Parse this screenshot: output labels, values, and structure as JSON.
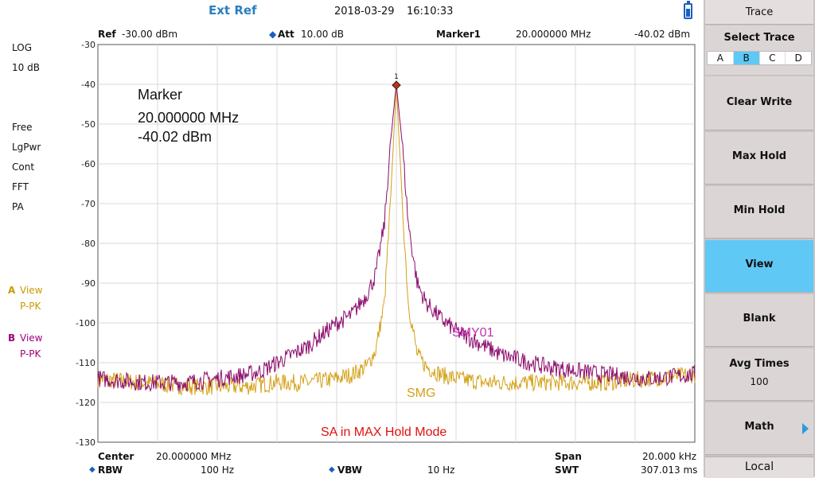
{
  "topbar": {
    "ref_source": "Ext Ref",
    "date": "2018-03-29",
    "time": "16:10:33",
    "battery_icon": "battery-icon"
  },
  "header": {
    "ref_label": "Ref",
    "ref_value": "-30.00 dBm",
    "att_label": "Att",
    "att_value": "10.00 dB",
    "marker_label": "Marker1",
    "marker_freq": "20.000000 MHz",
    "marker_level": "-40.02 dBm"
  },
  "left_info": {
    "scale": "LOG",
    "per_div": "10 dB",
    "trigger": "Free",
    "detector_mode": "LgPwr",
    "sweep": "Cont",
    "sweep_type": "FFT",
    "preamp": "PA",
    "traceA_letter": "A",
    "traceA_state": "View",
    "traceA_det": "P-PK",
    "traceB_letter": "B",
    "traceB_state": "View",
    "traceB_det": "P-PK"
  },
  "marker_box": {
    "title": "Marker",
    "freq": "20.000000 MHz",
    "level": "-40.02 dBm"
  },
  "bottom": {
    "center_label": "Center",
    "center_value": "20.000000 MHz",
    "span_label": "Span",
    "span_value": "20.000 kHz",
    "rbw_label": "RBW",
    "rbw_value": "100 Hz",
    "vbw_label": "VBW",
    "vbw_value": "10 Hz",
    "swt_label": "SWT",
    "swt_value": "307.013 ms"
  },
  "panel": {
    "title": "Trace",
    "select_label": "Select Trace",
    "traces": [
      "A",
      "B",
      "C",
      "D"
    ],
    "selected_trace": "B",
    "buttons": [
      {
        "label": "Clear Write"
      },
      {
        "label": "Max Hold"
      },
      {
        "label": "Min Hold"
      },
      {
        "label": "View",
        "active": true
      },
      {
        "label": "Blank"
      },
      {
        "label": "Avg Times",
        "sub": "100"
      },
      {
        "label": "Math",
        "has_arrow": true
      }
    ],
    "local": "Local"
  },
  "chart_data": {
    "type": "line",
    "xlabel": "",
    "ylabel": "",
    "ylim": [
      -130,
      -30
    ],
    "yticks": [
      -30,
      -40,
      -50,
      -60,
      -70,
      -80,
      -90,
      -100,
      -110,
      -120,
      -130
    ],
    "xlim": [
      19.99,
      20.01
    ],
    "x_units": "MHz",
    "grid": true,
    "annotations": [
      {
        "text": "SMY01",
        "color": "#c030b0"
      },
      {
        "text": "SMG",
        "color": "#d4a017"
      },
      {
        "text": "SA in MAX Hold Mode",
        "color": "#e01010"
      }
    ],
    "marker": {
      "label": "1",
      "x": 20.0,
      "y": -40.02
    },
    "series": [
      {
        "color": "#8b0a6b",
        "x": [
          19.99,
          19.9915,
          19.993,
          19.994,
          19.995,
          19.9955,
          19.996,
          19.9965,
          19.997,
          19.9975,
          19.998,
          19.9985,
          19.999,
          19.9993,
          19.9996,
          19.9998,
          20.0,
          20.0002,
          20.0004,
          20.0007,
          20.001,
          20.0015,
          20.002,
          20.0025,
          20.003,
          20.0035,
          20.004,
          20.0045,
          20.005,
          20.006,
          20.007,
          20.0085,
          20.01
        ],
        "y": [
          -114,
          -115,
          -115,
          -114,
          -113,
          -112,
          -110,
          -108,
          -106,
          -103,
          -100,
          -98,
          -93,
          -88,
          -75,
          -55,
          -40,
          -55,
          -75,
          -90,
          -95,
          -99,
          -102,
          -104,
          -106,
          -108,
          -109,
          -110,
          -111,
          -112,
          -113,
          -114,
          -113
        ]
      },
      {
        "color": "#d4a017",
        "x": [
          19.99,
          19.9915,
          19.993,
          19.994,
          19.995,
          19.996,
          19.997,
          19.998,
          19.9985,
          19.999,
          19.9993,
          19.9996,
          19.9998,
          20.0,
          20.0002,
          20.0004,
          20.0007,
          20.001,
          20.0015,
          20.002,
          20.003,
          20.004,
          20.005,
          20.006,
          20.007,
          20.0085,
          20.01
        ],
        "y": [
          -114,
          -115,
          -116,
          -116,
          -116,
          -115,
          -115,
          -114,
          -113,
          -111,
          -107,
          -95,
          -70,
          -40,
          -70,
          -95,
          -108,
          -111,
          -113,
          -114,
          -115,
          -115,
          -115,
          -115,
          -115,
          -114,
          -113
        ]
      }
    ]
  }
}
